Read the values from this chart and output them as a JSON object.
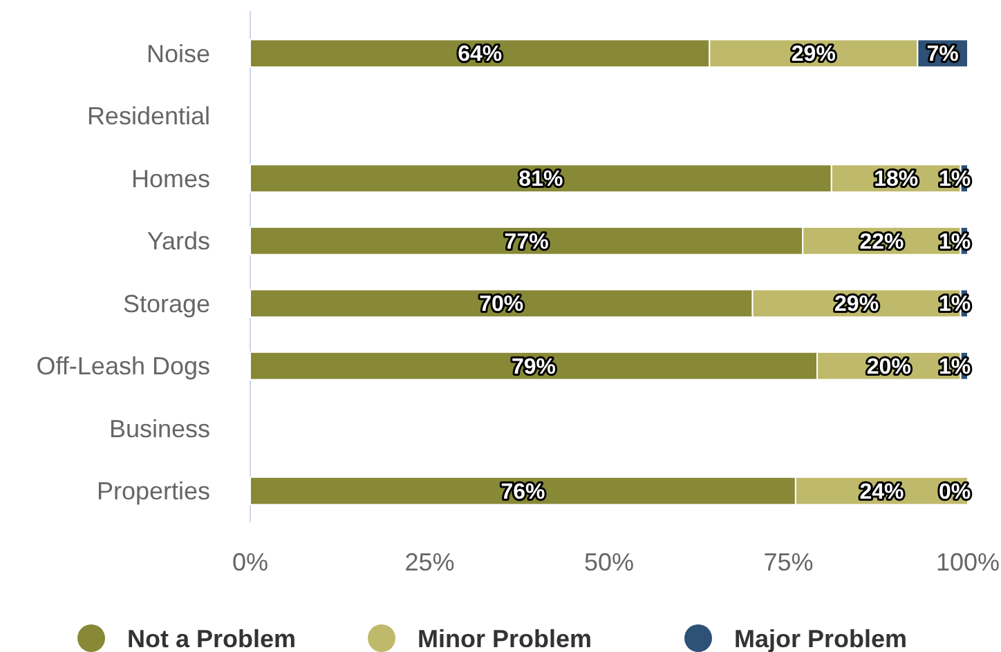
{
  "chart_data": {
    "type": "bar",
    "orientation": "horizontal",
    "stacked": true,
    "categories": [
      "Noise",
      "Residential",
      "Homes",
      "Yards",
      "Storage",
      "Off-Leash Dogs",
      "Business",
      "Properties"
    ],
    "series": [
      {
        "name": "Not a Problem",
        "color": "#878937",
        "values": [
          64,
          null,
          81,
          77,
          70,
          79,
          null,
          76
        ],
        "value_labels": [
          "64%",
          null,
          "81%",
          "77%",
          "70%",
          "79%",
          null,
          "76%"
        ]
      },
      {
        "name": "Minor Problem",
        "color": "#bfba6b",
        "values": [
          29,
          null,
          18,
          22,
          29,
          20,
          null,
          24
        ],
        "value_labels": [
          "29%",
          null,
          "18%",
          "22%",
          "29%",
          "20%",
          null,
          "24%"
        ]
      },
      {
        "name": "Major Problem",
        "color": "#2d5177",
        "values": [
          7,
          null,
          1,
          1,
          1,
          1,
          null,
          0
        ],
        "value_labels": [
          "7%",
          null,
          "1%",
          "1%",
          "1%",
          "1%",
          null,
          "0%"
        ]
      }
    ],
    "xlim": [
      0,
      100
    ],
    "xticks": [
      {
        "value": 0,
        "label": "0%"
      },
      {
        "value": 25,
        "label": "25%"
      },
      {
        "value": 50,
        "label": "50%"
      },
      {
        "value": 75,
        "label": "75%"
      },
      {
        "value": 100,
        "label": "100%"
      }
    ],
    "grid": false,
    "legend": "bottom"
  }
}
